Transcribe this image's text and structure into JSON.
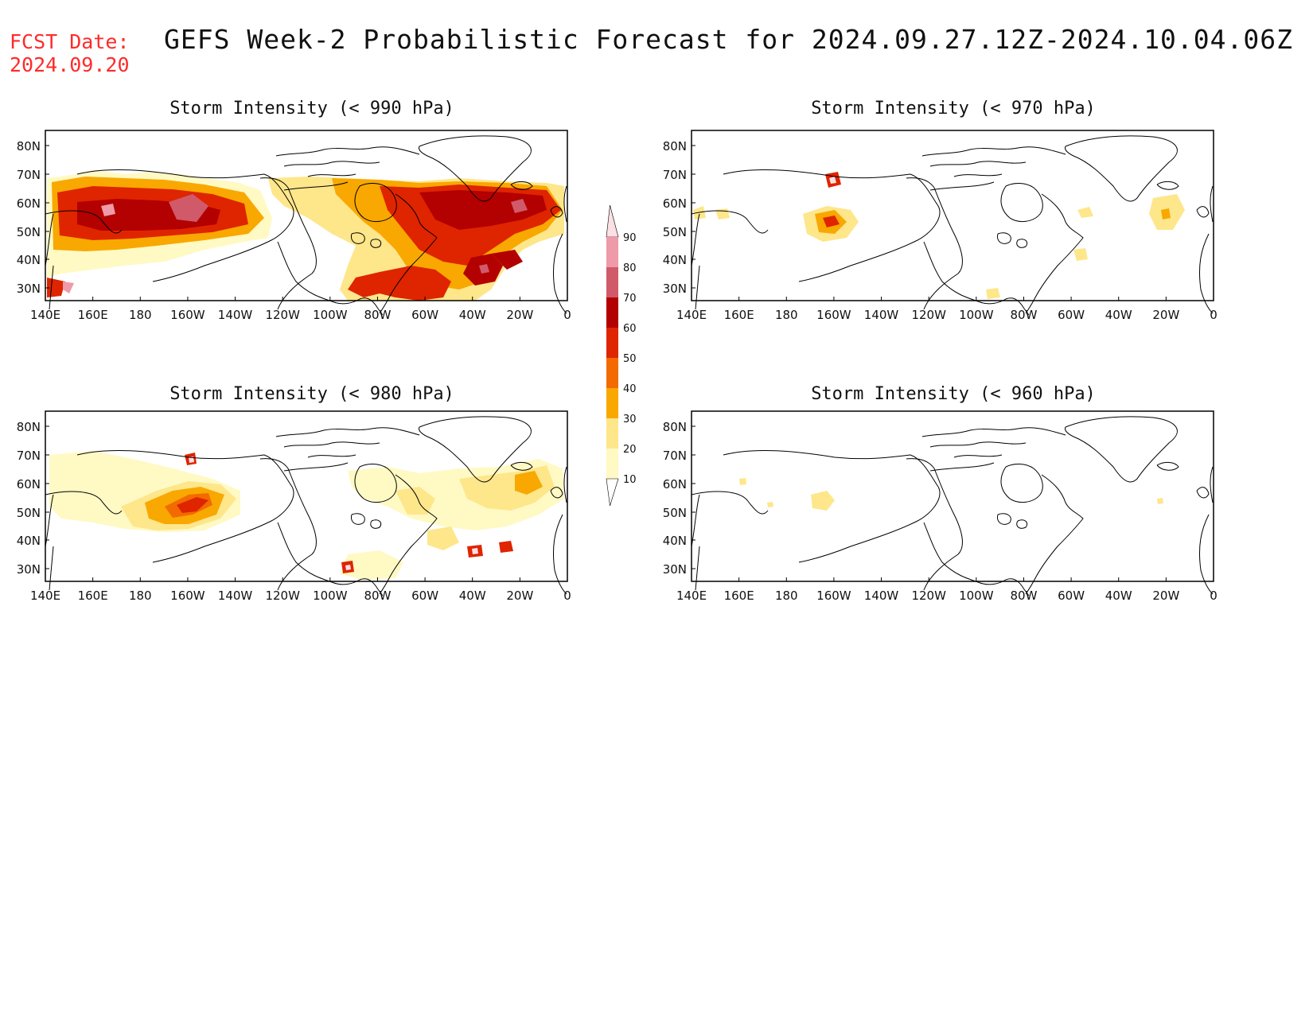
{
  "header": {
    "fcst_label": "FCST Date:",
    "fcst_date": "2024.09.20",
    "title": "GEFS Week-2 Probabilistic Forecast for 2024.09.27.12Z-2024.10.04.06Z"
  },
  "axes": {
    "lon_labels": [
      "140E",
      "160E",
      "180",
      "160W",
      "140W",
      "120W",
      "100W",
      "80W",
      "60W",
      "40W",
      "20W",
      "0"
    ],
    "lat_labels": [
      "80N",
      "70N",
      "60N",
      "50N",
      "40N",
      "30N"
    ]
  },
  "panels": [
    {
      "id": "p990",
      "title": "Storm Intensity (< 990 hPa)"
    },
    {
      "id": "p970",
      "title": "Storm Intensity (< 970 hPa)"
    },
    {
      "id": "p980",
      "title": "Storm Intensity (< 980 hPa)"
    },
    {
      "id": "p960",
      "title": "Storm Intensity (< 960 hPa)"
    }
  ],
  "colorbar": {
    "levels": [
      "10",
      "20",
      "30",
      "40",
      "50",
      "60",
      "70",
      "80",
      "90"
    ],
    "colors": [
      "#fff9c4",
      "#fee68a",
      "#f8a800",
      "#f36a00",
      "#df2400",
      "#b30000",
      "#d05a6a",
      "#ef9aa8",
      "#fbe1e4"
    ]
  }
}
